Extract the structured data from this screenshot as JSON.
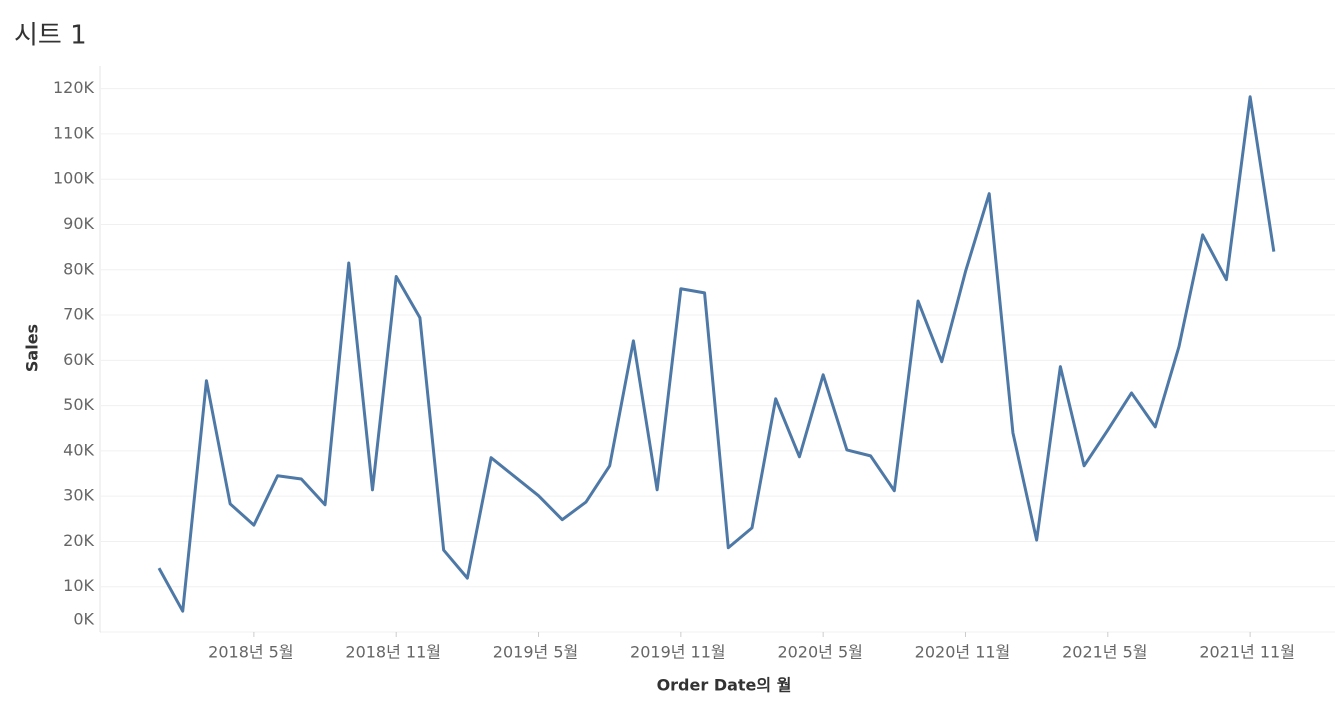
{
  "chart_data": {
    "type": "line",
    "title": "시트 1",
    "xlabel": "Order Date의 월",
    "ylabel": "Sales",
    "color": "#4e79a7",
    "grid": true,
    "x": [
      "2018-01",
      "2018-02",
      "2018-03",
      "2018-04",
      "2018-05",
      "2018-06",
      "2018-07",
      "2018-08",
      "2018-09",
      "2018-10",
      "2018-11",
      "2018-12",
      "2019-01",
      "2019-02",
      "2019-03",
      "2019-04",
      "2019-05",
      "2019-06",
      "2019-07",
      "2019-08",
      "2019-09",
      "2019-10",
      "2019-11",
      "2019-12",
      "2020-01",
      "2020-02",
      "2020-03",
      "2020-04",
      "2020-05",
      "2020-06",
      "2020-07",
      "2020-08",
      "2020-09",
      "2020-10",
      "2020-11",
      "2020-12",
      "2021-01",
      "2021-02",
      "2021-03",
      "2021-04",
      "2021-05",
      "2021-06",
      "2021-07",
      "2021-08",
      "2021-09",
      "2021-10",
      "2021-11",
      "2021-12"
    ],
    "values": [
      14100,
      4600,
      55500,
      28300,
      23600,
      34500,
      33800,
      28100,
      81500,
      31400,
      78500,
      69400,
      18100,
      11900,
      38500,
      34300,
      30100,
      24800,
      28700,
      36700,
      64300,
      31400,
      75800,
      74900,
      18600,
      23000,
      51500,
      38700,
      56800,
      40200,
      38900,
      31200,
      73100,
      59700,
      79600,
      96800,
      44000,
      20300,
      58600,
      36700,
      44600,
      52800,
      45300,
      63000,
      87700,
      77800,
      118200,
      84000
    ],
    "xticks": [
      {
        "value": "2018-05",
        "label": "2018년 5월"
      },
      {
        "value": "2018-11",
        "label": "2018년 11월"
      },
      {
        "value": "2019-05",
        "label": "2019년 5월"
      },
      {
        "value": "2019-11",
        "label": "2019년 11월"
      },
      {
        "value": "2020-05",
        "label": "2020년 5월"
      },
      {
        "value": "2020-11",
        "label": "2020년 11월"
      },
      {
        "value": "2021-05",
        "label": "2021년 5월"
      },
      {
        "value": "2021-11",
        "label": "2021년 11월"
      }
    ],
    "ylim": [
      0,
      125000
    ],
    "yticks": [
      {
        "value": 0,
        "label": "0K"
      },
      {
        "value": 10000,
        "label": "10K"
      },
      {
        "value": 20000,
        "label": "20K"
      },
      {
        "value": 30000,
        "label": "30K"
      },
      {
        "value": 40000,
        "label": "40K"
      },
      {
        "value": 50000,
        "label": "50K"
      },
      {
        "value": 60000,
        "label": "60K"
      },
      {
        "value": 70000,
        "label": "70K"
      },
      {
        "value": 80000,
        "label": "80K"
      },
      {
        "value": 90000,
        "label": "90K"
      },
      {
        "value": 100000,
        "label": "100K"
      },
      {
        "value": 110000,
        "label": "110K"
      },
      {
        "value": 120000,
        "label": "120K"
      }
    ]
  }
}
